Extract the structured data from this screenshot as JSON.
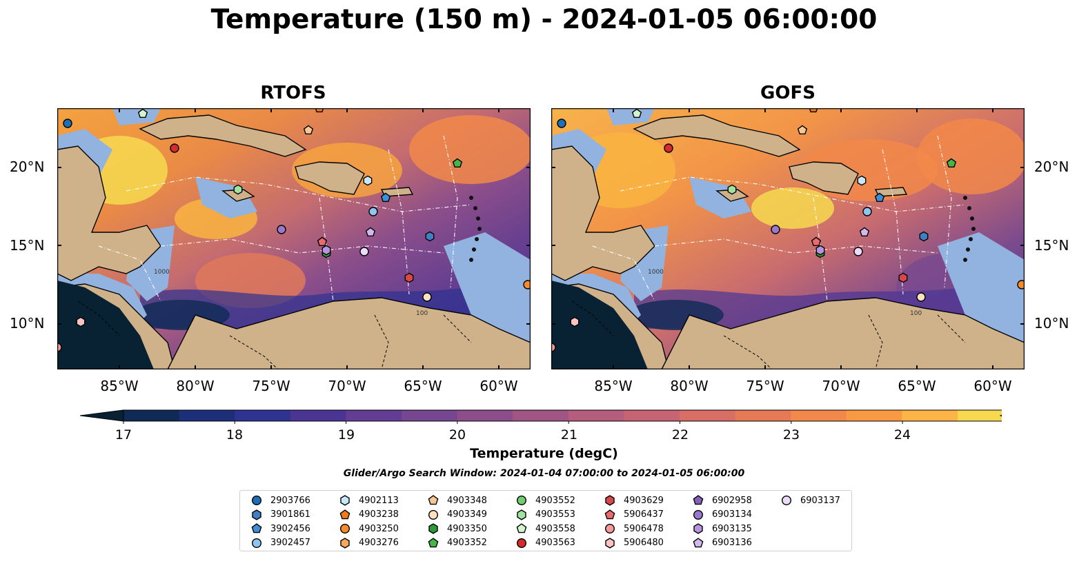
{
  "title": "Temperature (150 m) - 2024-01-05 06:00:00",
  "panels": [
    {
      "title": "RTOFS"
    },
    {
      "title": "GOFS"
    }
  ],
  "lat_ticks": [
    "20°N",
    "15°N",
    "10°N"
  ],
  "lon_ticks": [
    "85°W",
    "80°W",
    "75°W",
    "70°W",
    "65°W",
    "60°W"
  ],
  "colorbar": {
    "label": "Temperature (degC)",
    "min": 17,
    "max": 24.5,
    "step": 0.5,
    "ticks": [
      "17",
      "18",
      "19",
      "20",
      "21",
      "22",
      "23",
      "24"
    ],
    "colors": [
      "#082233",
      "#0f2a55",
      "#1e2f7a",
      "#2e3290",
      "#4a3595",
      "#633d94",
      "#774690",
      "#8b4e8a",
      "#a05584",
      "#b45d7c",
      "#c76473",
      "#d86e66",
      "#e67a57",
      "#f28849",
      "#f99a42",
      "#fbb445",
      "#f6d94f",
      "#eeee55"
    ]
  },
  "search_window": "Glider/Argo Search Window: 2024-01-04 07:00:00 to 2024-01-05 06:00:00",
  "map_colors": {
    "land": "#cfb28a",
    "shallow": "#92b3e0",
    "ocean_deep": "#082233",
    "white_line": "#ffffff"
  },
  "legend": [
    {
      "label": "2903766",
      "marker": "circle",
      "color": "#1f6fb8"
    },
    {
      "label": "3901861",
      "marker": "hexagon",
      "color": "#3f7fc2"
    },
    {
      "label": "3902456",
      "marker": "pentagon",
      "color": "#3c8fd8"
    },
    {
      "label": "3902457",
      "marker": "circle",
      "color": "#8ec4ef"
    },
    {
      "label": "4902113",
      "marker": "hexagon",
      "color": "#c8e8fb"
    },
    {
      "label": "4903238",
      "marker": "pentagon",
      "color": "#f07a1a"
    },
    {
      "label": "4903250",
      "marker": "circle",
      "color": "#f58b2c"
    },
    {
      "label": "4903276",
      "marker": "hexagon",
      "color": "#f7a860"
    },
    {
      "label": "4903348",
      "marker": "pentagon",
      "color": "#f8c892"
    },
    {
      "label": "4903349",
      "marker": "circle",
      "color": "#fde0c0"
    },
    {
      "label": "4903350",
      "marker": "hexagon",
      "color": "#2b9a3a"
    },
    {
      "label": "4903352",
      "marker": "pentagon",
      "color": "#46b646"
    },
    {
      "label": "4903552",
      "marker": "circle",
      "color": "#6fcf70"
    },
    {
      "label": "4903553",
      "marker": "hexagon",
      "color": "#a2e2a0"
    },
    {
      "label": "4903558",
      "marker": "pentagon",
      "color": "#d0f5cf"
    },
    {
      "label": "4903563",
      "marker": "circle",
      "color": "#d62b2b"
    },
    {
      "label": "4903629",
      "marker": "hexagon",
      "color": "#d94848"
    },
    {
      "label": "5906437",
      "marker": "pentagon",
      "color": "#ea6b6b"
    },
    {
      "label": "5906478",
      "marker": "circle",
      "color": "#f49a9a"
    },
    {
      "label": "5906480",
      "marker": "hexagon",
      "color": "#f7c3c3"
    },
    {
      "label": "6902958",
      "marker": "pentagon",
      "color": "#8660b8"
    },
    {
      "label": "6903134",
      "marker": "circle",
      "color": "#9a78cc"
    },
    {
      "label": "6903135",
      "marker": "hexagon",
      "color": "#b894e0"
    },
    {
      "label": "6903136",
      "marker": "pentagon",
      "color": "#d3b8f0"
    },
    {
      "label": "6903137",
      "marker": "circle",
      "color": "#ecdcfa"
    }
  ],
  "contour_labels": [
    "100",
    "1000"
  ]
}
